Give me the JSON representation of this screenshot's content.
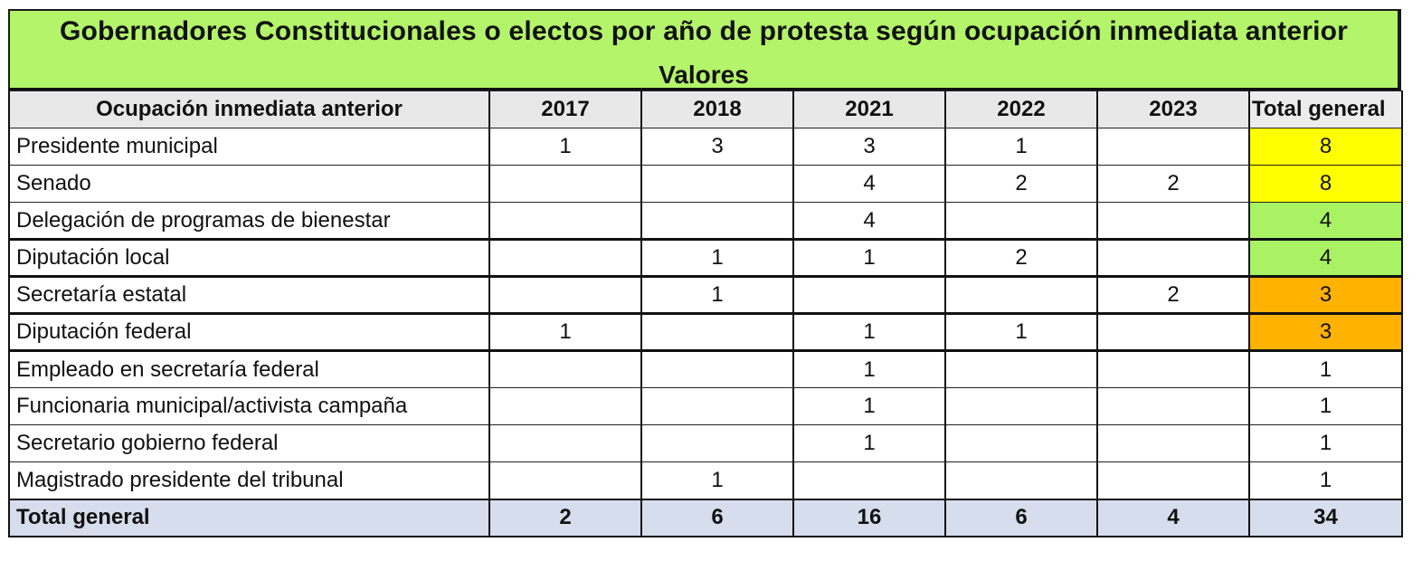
{
  "title": {
    "line1": "Gobernadores Constitucionales o electos por año de protesta según ocupación inmediata anterior",
    "line2": "Valores"
  },
  "table": {
    "columns": [
      "Ocupación inmediata anterior",
      "2017",
      "2018",
      "2021",
      "2022",
      "2023",
      "Total general"
    ],
    "rows": [
      {
        "label": "Presidente municipal",
        "values": [
          "1",
          "3",
          "3",
          "1",
          ""
        ],
        "total": "8",
        "total_color": "#ffff00"
      },
      {
        "label": "Senado",
        "values": [
          "",
          "",
          "4",
          "2",
          "2"
        ],
        "total": "8",
        "total_color": "#ffff00"
      },
      {
        "label": "Delegación de programas de bienestar",
        "values": [
          "",
          "",
          "4",
          "",
          ""
        ],
        "total": "4",
        "total_color": "#a9f263"
      },
      {
        "label": "Diputación local",
        "values": [
          "",
          "1",
          "1",
          "2",
          ""
        ],
        "total": "4",
        "total_color": "#a9f263"
      },
      {
        "label": "Secretaría estatal",
        "values": [
          "",
          "1",
          "",
          "",
          "2"
        ],
        "total": "3",
        "total_color": "#ffb200"
      },
      {
        "label": "Diputación federal",
        "values": [
          "1",
          "",
          "1",
          "1",
          ""
        ],
        "total": "3",
        "total_color": "#ffb200"
      },
      {
        "label": "Empleado en secretaría federal",
        "values": [
          "",
          "",
          "1",
          "",
          ""
        ],
        "total": "1",
        "total_color": "#ffffff"
      },
      {
        "label": "Funcionaria municipal/activista campaña",
        "values": [
          "",
          "",
          "1",
          "",
          ""
        ],
        "total": "1",
        "total_color": "#ffffff"
      },
      {
        "label": "Secretario gobierno federal",
        "values": [
          "",
          "",
          "1",
          "",
          ""
        ],
        "total": "1",
        "total_color": "#ffffff"
      },
      {
        "label": "Magistrado presidente del tribunal",
        "values": [
          "",
          "1",
          "",
          "",
          ""
        ],
        "total": "1",
        "total_color": "#ffffff"
      }
    ],
    "total_row": {
      "label": "Total general",
      "values": [
        "2",
        "6",
        "16",
        "6",
        "4"
      ],
      "total": "34"
    }
  },
  "colors": {
    "title_bg": "#b3f46a",
    "header_bg": "#e8e8e8",
    "total_row_bg": "#d6deed",
    "highlight_yellow": "#ffff00",
    "highlight_green": "#a9f263",
    "highlight_orange": "#ffb200"
  },
  "chart_data": {
    "type": "table",
    "title": "Gobernadores Constitucionales o electos por año de protesta según ocupación inmediata anterior",
    "subtitle": "Valores",
    "categories": [
      "2017",
      "2018",
      "2021",
      "2022",
      "2023"
    ],
    "row_header": "Ocupación inmediata anterior",
    "series": [
      {
        "name": "Presidente municipal",
        "values": [
          1,
          3,
          3,
          1,
          null
        ],
        "total": 8
      },
      {
        "name": "Senado",
        "values": [
          null,
          null,
          4,
          2,
          2
        ],
        "total": 8
      },
      {
        "name": "Delegación de programas de bienestar",
        "values": [
          null,
          null,
          4,
          null,
          null
        ],
        "total": 4
      },
      {
        "name": "Diputación local",
        "values": [
          null,
          1,
          1,
          2,
          null
        ],
        "total": 4
      },
      {
        "name": "Secretaría estatal",
        "values": [
          null,
          1,
          null,
          null,
          2
        ],
        "total": 3
      },
      {
        "name": "Diputación federal",
        "values": [
          1,
          null,
          1,
          1,
          null
        ],
        "total": 3
      },
      {
        "name": "Empleado en secretaría federal",
        "values": [
          null,
          null,
          1,
          null,
          null
        ],
        "total": 1
      },
      {
        "name": "Funcionaria municipal/activista campaña",
        "values": [
          null,
          null,
          1,
          null,
          null
        ],
        "total": 1
      },
      {
        "name": "Secretario gobierno federal",
        "values": [
          null,
          null,
          1,
          null,
          null
        ],
        "total": 1
      },
      {
        "name": "Magistrado presidente del tribunal",
        "values": [
          null,
          1,
          null,
          null,
          null
        ],
        "total": 1
      }
    ],
    "column_totals": [
      2,
      6,
      16,
      6,
      4
    ],
    "grand_total": 34
  }
}
